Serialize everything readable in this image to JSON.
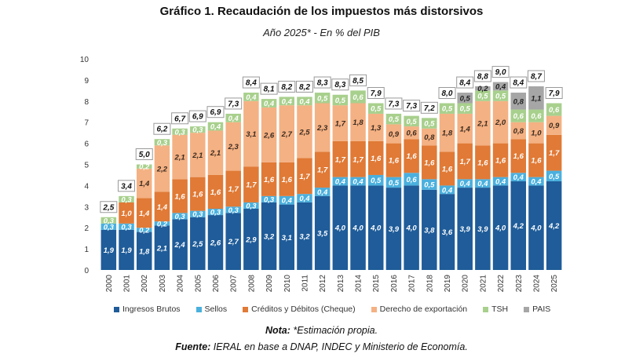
{
  "chart_data": {
    "type": "bar",
    "stacked": true,
    "title": "Gráfico 1. Recaudación de los impuestos más distorsivos",
    "subtitle": "Año 2025* - En % del PIB",
    "ylim": [
      0,
      10
    ],
    "yticks": [
      "0",
      "1",
      "2",
      "3",
      "4",
      "5",
      "6",
      "7",
      "8",
      "9",
      "10"
    ],
    "grid": false,
    "legend_position": "bottom",
    "categories": [
      "2000",
      "2001",
      "2002",
      "2003",
      "2004",
      "2005",
      "2006",
      "2007",
      "2008",
      "2009",
      "2010",
      "2011",
      "2012",
      "2013",
      "2014",
      "2015",
      "2016",
      "2017",
      "2018",
      "2019",
      "2020",
      "2021",
      "2022",
      "2023",
      "2024",
      "2025"
    ],
    "series": [
      {
        "name": "Ingresos Brutos",
        "color": "#1f5c99",
        "label_color": "#ffffff",
        "values": [
          1.9,
          1.9,
          1.8,
          2.1,
          2.4,
          2.5,
          2.6,
          2.7,
          2.9,
          3.2,
          3.1,
          3.2,
          3.5,
          4.0,
          4.0,
          4.0,
          3.9,
          4.0,
          3.8,
          3.6,
          3.9,
          3.9,
          4.0,
          4.2,
          4.0,
          4.2
        ]
      },
      {
        "name": "Sellos",
        "color": "#4ab0de",
        "label_color": "#ffffff",
        "values": [
          0.3,
          0.3,
          0.2,
          0.2,
          0.3,
          0.3,
          0.3,
          0.3,
          0.3,
          0.3,
          0.4,
          0.4,
          0.4,
          0.4,
          0.4,
          0.5,
          0.5,
          0.6,
          0.5,
          0.4,
          0.4,
          0.4,
          0.4,
          0.4,
          0.4,
          0.5
        ]
      },
      {
        "name": "Créditos y Débitos (Cheque)",
        "color": "#e07a36",
        "label_color": "#ffffff",
        "values": [
          0,
          1.0,
          1.4,
          1.4,
          1.6,
          1.6,
          1.6,
          1.7,
          1.7,
          1.6,
          1.6,
          1.7,
          1.7,
          1.7,
          1.7,
          1.6,
          1.6,
          1.6,
          1.6,
          1.6,
          1.7,
          1.6,
          1.6,
          1.6,
          1.6,
          1.7
        ]
      },
      {
        "name": "Derecho de exportación",
        "color": "#f4b183",
        "label_color": "#3a2a20",
        "values": [
          0,
          0,
          1.4,
          2.2,
          2.1,
          2.1,
          2.1,
          2.3,
          3.1,
          2.6,
          2.7,
          2.5,
          2.3,
          1.7,
          1.8,
          1.3,
          0.9,
          0.6,
          0.8,
          1.8,
          1.4,
          2.1,
          2.0,
          0.8,
          1.0,
          0.9
        ]
      },
      {
        "name": "TSH",
        "color": "#a8d08d",
        "label_color": "#ffffff",
        "values": [
          0.3,
          0.3,
          0.2,
          0.3,
          0.3,
          0.3,
          0.4,
          0.4,
          0.4,
          0.4,
          0.4,
          0.4,
          0.5,
          0.5,
          0.6,
          0.5,
          0.5,
          0.5,
          0.5,
          0.5,
          0.5,
          0.5,
          0.5,
          0.6,
          0.6,
          0.6
        ]
      },
      {
        "name": "PAIS",
        "color": "#a6a6a6",
        "label_color": "#222222",
        "values": [
          0,
          0,
          0,
          0,
          0,
          0,
          0,
          0,
          0,
          0,
          0,
          0,
          0,
          0,
          0,
          0,
          0,
          0,
          0,
          0,
          0.5,
          0.2,
          0.4,
          0.8,
          1.1,
          0
        ]
      }
    ],
    "totals": [
      2.5,
      3.4,
      5.0,
      6.2,
      6.7,
      6.9,
      6.9,
      7.3,
      8.4,
      8.1,
      8.2,
      8.2,
      8.3,
      8.3,
      8.5,
      7.9,
      7.3,
      7.3,
      7.2,
      8.0,
      8.4,
      8.8,
      9.0,
      8.4,
      8.7,
      7.9
    ]
  },
  "note_label": "Nota:",
  "note_text": " *Estimación propia.",
  "source_label": "Fuente:",
  "source_text": " IERAL en base a DNAP, INDEC y Ministerio de Economía."
}
